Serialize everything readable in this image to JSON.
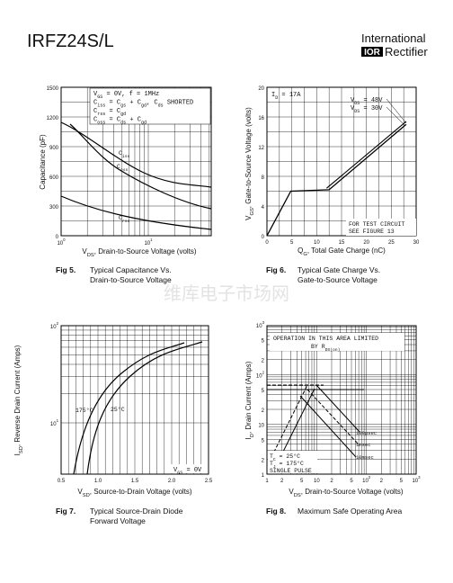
{
  "header": {
    "part": "IRFZ24S/L",
    "brand_top": "International",
    "brand_logo": "IOR",
    "brand_bottom": "Rectifier"
  },
  "watermark": "维库电子市场网",
  "fig5": {
    "number": "Fig 5.",
    "caption": [
      "Typical Capacitance Vs.",
      "Drain-to-Source Voltage"
    ],
    "y_label": "Capacitance (pF)",
    "x_label": [
      "V",
      "DS",
      ", Drain-to-Source Voltage (volts)"
    ],
    "y_ticks": [
      "1500",
      "1200",
      "900",
      "600",
      "300",
      "0"
    ],
    "x_ticks": [
      [
        "10",
        "0"
      ],
      [
        "10",
        "1"
      ]
    ],
    "legend": [
      [
        "V",
        "GS",
        " = 0V,  f = 1MHz"
      ],
      [
        "C",
        "iss",
        " = C",
        "gs",
        " + C",
        "gd",
        ",  C",
        "ds",
        " SHORTED"
      ],
      [
        "C",
        "rss",
        " = C",
        "gd"
      ],
      [
        "C",
        "oss",
        " = C",
        "ds",
        " + C",
        "gd"
      ]
    ],
    "curves": [
      [
        "C",
        "iss"
      ],
      [
        "C",
        "oss"
      ],
      [
        "C",
        "rss"
      ]
    ]
  },
  "fig6": {
    "number": "Fig 6.",
    "caption": [
      "Typical Gate Charge Vs.",
      "Gate-to-Source Voltage"
    ],
    "y_label": [
      "V",
      "GS",
      ", Gate-to-Source Voltage (volts)"
    ],
    "x_label": [
      "Q",
      "G",
      ", Total Gate Charge (nC)"
    ],
    "y_ticks": [
      "20",
      "16",
      "12",
      "8",
      "4",
      "0"
    ],
    "x_ticks": [
      "0",
      "5",
      "10",
      "15",
      "20",
      "25",
      "30"
    ],
    "id": [
      "I",
      "D",
      " = 17A"
    ],
    "vds48": [
      "V",
      "DS",
      " = 48V"
    ],
    "vds30": [
      "V",
      "DS",
      " = 30V"
    ],
    "note": [
      "FOR TEST CIRCUIT",
      "SEE FIGURE 13"
    ]
  },
  "fig7": {
    "number": "Fig 7.",
    "caption": [
      "Typical Source-Drain Diode",
      "Forward Voltage"
    ],
    "y_label": [
      "I",
      "SD",
      ", Reverse Drain Current (Amps)"
    ],
    "x_label": [
      "V",
      "SD",
      ", Source-to-Drain Voltage (volts)"
    ],
    "y_ticks": [
      [
        "10",
        "2"
      ],
      [
        "10",
        "1"
      ]
    ],
    "x_ticks": [
      "0.5",
      "1.0",
      "1.5",
      "2.0",
      "2.5"
    ],
    "t175": "175°C",
    "t25": "25°C",
    "vgs": [
      "V",
      "GS",
      " = 0V"
    ]
  },
  "fig8": {
    "number": "Fig 8.",
    "caption": [
      "Maximum Safe Operating Area"
    ],
    "y_label": [
      "I",
      "D",
      ", Drain Current (Amps)"
    ],
    "x_label": [
      "V",
      "DS",
      ", Drain-to-Source Voltage (volts)"
    ],
    "y_ticks": [
      [
        "10",
        "3"
      ],
      [
        "5"
      ],
      [
        "2"
      ],
      [
        "10",
        "2"
      ],
      [
        "5"
      ],
      [
        "2"
      ],
      [
        "10"
      ],
      [
        "5"
      ],
      [
        "2"
      ],
      [
        "1"
      ]
    ],
    "x_ticks": [
      [
        "1"
      ],
      [
        "2"
      ],
      [
        "5"
      ],
      [
        "10"
      ],
      [
        "2"
      ],
      [
        "5"
      ],
      [
        "10",
        "2"
      ],
      [
        "2"
      ],
      [
        "5"
      ],
      [
        "10",
        "3"
      ]
    ],
    "limit": [
      "OPERATION IN THIS AREA LIMITED",
      [
        "BY R",
        "DS(on)"
      ]
    ],
    "t100": "100µsec",
    "t1": "1msec",
    "t10": "10msec",
    "cond": [
      [
        "T",
        "C",
        " = 25°C"
      ],
      [
        "T",
        "J",
        " = 175°C"
      ],
      "SINGLE PULSE"
    ]
  }
}
